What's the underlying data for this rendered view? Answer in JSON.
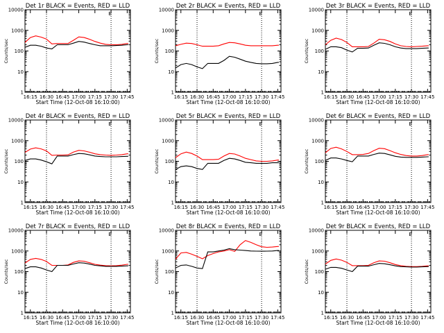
{
  "chart_data": [
    {
      "type": "line",
      "title": "Det 1r BLACK = Events, RED = LLD",
      "xlabel": "Start Time (12-Oct-08 16:10:00)",
      "ylabel": "Counts/sec",
      "x_ticks": [
        "16:15",
        "16:30",
        "16:45",
        "17:00",
        "17:15",
        "17:30",
        "17:45"
      ],
      "y_ticks": [
        "1",
        "10",
        "100",
        "1000",
        "10000"
      ],
      "ylim": [
        1,
        10000
      ],
      "y_scale": "log",
      "grid": false,
      "marker": "E",
      "x": [
        0,
        5,
        10,
        15,
        20,
        25,
        30,
        35,
        40,
        45,
        50,
        55,
        60,
        65,
        70,
        75,
        80,
        85,
        90,
        95,
        96
      ],
      "series": [
        {
          "color": "#ff0000",
          "values": [
            260,
            450,
            540,
            470,
            380,
            220,
            230,
            230,
            230,
            330,
            480,
            450,
            370,
            290,
            240,
            210,
            200,
            200,
            210,
            230,
            230
          ]
        },
        {
          "color": "#000000",
          "values": [
            150,
            190,
            190,
            170,
            140,
            125,
            200,
            200,
            200,
            240,
            290,
            270,
            230,
            200,
            180,
            180,
            180,
            185,
            190,
            200,
            200
          ]
        }
      ]
    },
    {
      "type": "line",
      "title": "Det 2r BLACK = Events, RED = LLD",
      "xlabel": "Start Time (12-Oct-08 16:10:00)",
      "ylabel": "Counts/sec",
      "x_ticks": [
        "16:15",
        "16:30",
        "16:45",
        "17:00",
        "17:15",
        "17:30",
        "17:45"
      ],
      "y_ticks": [
        "1",
        "10",
        "100",
        "1000",
        "10000"
      ],
      "ylim": [
        1,
        10000
      ],
      "y_scale": "log",
      "grid": false,
      "marker": "E",
      "x": [
        0,
        5,
        10,
        15,
        20,
        25,
        30,
        35,
        40,
        45,
        50,
        55,
        60,
        65,
        70,
        75,
        80,
        85,
        90,
        95,
        96
      ],
      "series": [
        {
          "color": "#ff0000",
          "values": [
            180,
            210,
            240,
            230,
            200,
            170,
            170,
            170,
            180,
            220,
            260,
            250,
            220,
            190,
            180,
            180,
            180,
            180,
            180,
            190,
            190
          ]
        },
        {
          "color": "#000000",
          "values": [
            15,
            22,
            25,
            22,
            17,
            14,
            25,
            25,
            25,
            35,
            55,
            50,
            40,
            32,
            28,
            25,
            24,
            24,
            25,
            28,
            28
          ]
        }
      ]
    },
    {
      "type": "line",
      "title": "Det 3r BLACK = Events, RED = LLD",
      "xlabel": "Start Time (12-Oct-08 16:10:00)",
      "ylabel": "Counts/sec",
      "x_ticks": [
        "16:15",
        "16:30",
        "16:45",
        "17:00",
        "17:15",
        "17:30",
        "17:45"
      ],
      "y_ticks": [
        "1",
        "10",
        "100",
        "1000",
        "10000"
      ],
      "ylim": [
        1,
        10000
      ],
      "y_scale": "log",
      "grid": false,
      "marker": "E",
      "x": [
        0,
        5,
        10,
        15,
        20,
        25,
        30,
        35,
        40,
        45,
        50,
        55,
        60,
        65,
        70,
        75,
        80,
        85,
        90,
        95,
        96
      ],
      "series": [
        {
          "color": "#ff0000",
          "values": [
            200,
            330,
            420,
            360,
            260,
            160,
            160,
            160,
            165,
            240,
            370,
            350,
            290,
            220,
            180,
            165,
            160,
            165,
            170,
            180,
            180
          ]
        },
        {
          "color": "#000000",
          "values": [
            120,
            160,
            160,
            145,
            110,
            90,
            135,
            135,
            140,
            190,
            250,
            235,
            200,
            160,
            140,
            130,
            130,
            130,
            135,
            140,
            140
          ]
        }
      ]
    },
    {
      "type": "line",
      "title": "Det 4r BLACK = Events, RED = LLD",
      "xlabel": "Start Time (12-Oct-08 16:10:00)",
      "ylabel": "Counts/sec",
      "x_ticks": [
        "16:15",
        "16:30",
        "16:45",
        "17:00",
        "17:15",
        "17:30",
        "17:45"
      ],
      "y_ticks": [
        "1",
        "10",
        "100",
        "1000",
        "10000"
      ],
      "ylim": [
        1,
        10000
      ],
      "y_scale": "log",
      "grid": false,
      "marker": "E",
      "x": [
        0,
        5,
        10,
        15,
        20,
        25,
        30,
        35,
        40,
        45,
        50,
        55,
        60,
        65,
        70,
        75,
        80,
        85,
        90,
        95,
        96
      ],
      "series": [
        {
          "color": "#ff0000",
          "values": [
            270,
            390,
            450,
            400,
            320,
            195,
            200,
            200,
            205,
            280,
            340,
            320,
            275,
            230,
            210,
            200,
            195,
            200,
            210,
            230,
            230
          ]
        },
        {
          "color": "#000000",
          "values": [
            110,
            130,
            130,
            115,
            95,
            75,
            180,
            180,
            180,
            210,
            240,
            230,
            205,
            180,
            170,
            165,
            165,
            165,
            170,
            175,
            175
          ]
        }
      ]
    },
    {
      "type": "line",
      "title": "Det 5r BLACK = Events, RED = LLD",
      "xlabel": "Start Time (12-Oct-08 16:10:00)",
      "ylabel": "Counts/sec",
      "x_ticks": [
        "16:15",
        "16:30",
        "16:45",
        "17:00",
        "17:15",
        "17:30",
        "17:45"
      ],
      "y_ticks": [
        "1",
        "10",
        "100",
        "1000",
        "10000"
      ],
      "ylim": [
        1,
        10000
      ],
      "y_scale": "log",
      "grid": false,
      "marker": "E",
      "x": [
        0,
        5,
        10,
        15,
        20,
        25,
        30,
        35,
        40,
        45,
        50,
        55,
        60,
        65,
        70,
        75,
        80,
        85,
        90,
        95,
        96
      ],
      "series": [
        {
          "color": "#ff0000",
          "values": [
            150,
            230,
            280,
            240,
            180,
            120,
            120,
            120,
            125,
            180,
            240,
            225,
            180,
            140,
            120,
            105,
            100,
            100,
            105,
            115,
            115
          ]
        },
        {
          "color": "#000000",
          "values": [
            40,
            55,
            60,
            55,
            45,
            40,
            80,
            80,
            80,
            110,
            140,
            130,
            110,
            90,
            85,
            80,
            80,
            80,
            85,
            85,
            85
          ]
        }
      ]
    },
    {
      "type": "line",
      "title": "Det 6r BLACK = Events, RED = LLD",
      "xlabel": "Start Time (12-Oct-08 16:10:00)",
      "ylabel": "Counts/sec",
      "x_ticks": [
        "16:15",
        "16:30",
        "16:45",
        "17:00",
        "17:15",
        "17:30",
        "17:45"
      ],
      "y_ticks": [
        "1",
        "10",
        "100",
        "1000",
        "10000"
      ],
      "ylim": [
        1,
        10000
      ],
      "y_scale": "log",
      "grid": false,
      "marker": "E",
      "x": [
        0,
        5,
        10,
        15,
        20,
        25,
        30,
        35,
        40,
        45,
        50,
        55,
        60,
        65,
        70,
        75,
        80,
        85,
        90,
        95,
        96
      ],
      "series": [
        {
          "color": "#ff0000",
          "values": [
            260,
            420,
            480,
            400,
            300,
            210,
            210,
            215,
            240,
            330,
            430,
            410,
            330,
            260,
            215,
            190,
            180,
            180,
            190,
            210,
            210
          ]
        },
        {
          "color": "#000000",
          "values": [
            110,
            145,
            145,
            130,
            110,
            95,
            180,
            180,
            180,
            215,
            250,
            240,
            205,
            175,
            160,
            155,
            155,
            155,
            160,
            165,
            165
          ]
        }
      ]
    },
    {
      "type": "line",
      "title": "Det 7r BLACK = Events, RED = LLD",
      "xlabel": "Start Time (12-Oct-08 16:10:00)",
      "ylabel": "Counts/sec",
      "x_ticks": [
        "16:15",
        "16:30",
        "16:45",
        "17:00",
        "17:15",
        "17:30",
        "17:45"
      ],
      "y_ticks": [
        "1",
        "10",
        "100",
        "1000",
        "10000"
      ],
      "ylim": [
        1,
        10000
      ],
      "y_scale": "log",
      "grid": false,
      "marker": "E",
      "x": [
        0,
        5,
        10,
        15,
        20,
        25,
        30,
        35,
        40,
        45,
        50,
        55,
        60,
        65,
        70,
        75,
        80,
        85,
        90,
        95,
        96
      ],
      "series": [
        {
          "color": "#ff0000",
          "values": [
            260,
            390,
            440,
            390,
            310,
            200,
            200,
            200,
            210,
            280,
            330,
            320,
            270,
            225,
            205,
            195,
            190,
            195,
            205,
            225,
            225
          ]
        },
        {
          "color": "#000000",
          "values": [
            140,
            170,
            170,
            150,
            120,
            100,
            200,
            200,
            200,
            235,
            270,
            260,
            230,
            200,
            190,
            180,
            180,
            180,
            185,
            190,
            190
          ]
        }
      ]
    },
    {
      "type": "line",
      "title": "Det 8r BLACK = Events, RED = LLD",
      "xlabel": "Start Time (12-Oct-08 16:10:00)",
      "ylabel": "Counts/sec",
      "x_ticks": [
        "16:15",
        "16:30",
        "16:45",
        "17:00",
        "17:15",
        "17:30",
        "17:45"
      ],
      "y_ticks": [
        "1",
        "10",
        "100",
        "1000",
        "10000"
      ],
      "ylim": [
        1,
        10000
      ],
      "y_scale": "log",
      "grid": false,
      "marker": "E",
      "x": [
        0,
        5,
        10,
        15,
        20,
        25,
        30,
        35,
        40,
        45,
        50,
        55,
        60,
        65,
        70,
        75,
        80,
        85,
        90,
        95,
        96
      ],
      "series": [
        {
          "color": "#ff0000",
          "values": [
            400,
            800,
            850,
            700,
            550,
            420,
            600,
            750,
            900,
            1000,
            1150,
            950,
            2000,
            3200,
            2600,
            2000,
            1600,
            1500,
            1550,
            1650,
            1650
          ]
        },
        {
          "color": "#000000",
          "values": [
            150,
            200,
            210,
            180,
            150,
            140,
            900,
            900,
            1000,
            1100,
            1300,
            1150,
            1100,
            1050,
            1000,
            980,
            970,
            980,
            1000,
            1050,
            1050
          ]
        }
      ]
    },
    {
      "type": "line",
      "title": "Det 9r BLACK = Events, RED = LLD",
      "xlabel": "Start Time (12-Oct-08 16:10:00)",
      "ylabel": "Counts/sec",
      "x_ticks": [
        "16:15",
        "16:30",
        "16:45",
        "17:00",
        "17:15",
        "17:30",
        "17:45"
      ],
      "y_ticks": [
        "1",
        "10",
        "100",
        "1000",
        "10000"
      ],
      "ylim": [
        1,
        10000
      ],
      "y_scale": "log",
      "grid": false,
      "marker": "E",
      "x": [
        0,
        5,
        10,
        15,
        20,
        25,
        30,
        35,
        40,
        45,
        50,
        55,
        60,
        65,
        70,
        75,
        80,
        85,
        90,
        95,
        96
      ],
      "series": [
        {
          "color": "#ff0000",
          "values": [
            230,
            350,
            410,
            360,
            280,
            195,
            195,
            195,
            200,
            270,
            330,
            320,
            270,
            220,
            195,
            180,
            175,
            175,
            180,
            190,
            190
          ]
        },
        {
          "color": "#000000",
          "values": [
            130,
            160,
            160,
            145,
            120,
            100,
            185,
            185,
            185,
            215,
            250,
            240,
            215,
            190,
            175,
            170,
            165,
            165,
            170,
            175,
            175
          ]
        }
      ]
    }
  ]
}
